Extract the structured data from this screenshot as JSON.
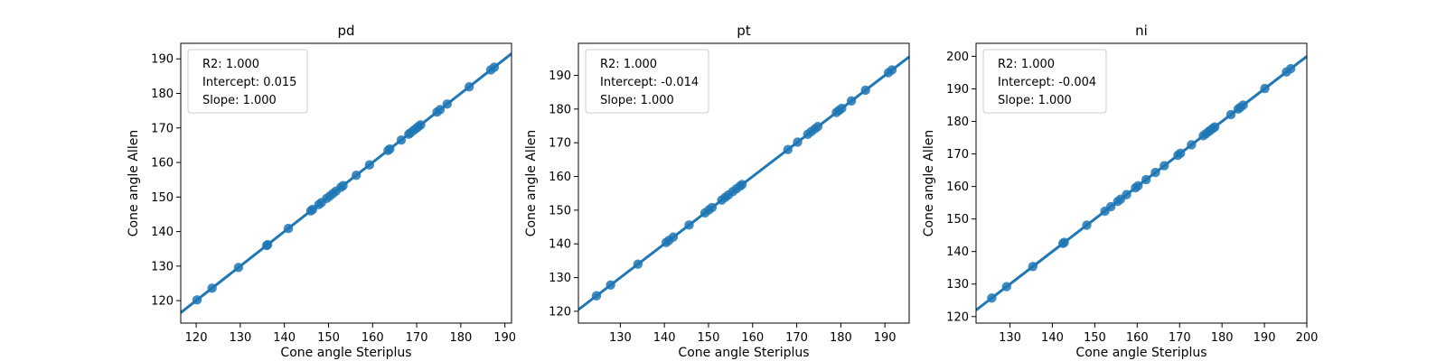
{
  "chart_data": [
    {
      "type": "scatter",
      "title": "pd",
      "xlabel": "Cone angle Steriplus",
      "ylabel": "Cone angle Allen",
      "xlim": [
        116.5,
        191.5
      ],
      "ylim": [
        113.5,
        194.5
      ],
      "xticks": [
        120,
        130,
        140,
        150,
        160,
        170,
        180,
        190
      ],
      "yticks": [
        120,
        130,
        140,
        150,
        160,
        170,
        180,
        190
      ],
      "grid": false,
      "legend_placement": "top-left",
      "annotations": [
        "R2: 1.000",
        "Intercept: 0.015",
        "Slope: 1.000"
      ],
      "fit": {
        "slope": 1.0,
        "intercept": 0.015
      },
      "x": [
        120.2,
        123.6,
        129.6,
        136.0,
        136.2,
        140.9,
        146.0,
        146.4,
        147.8,
        148.4,
        149.6,
        150.3,
        151.0,
        151.7,
        152.8,
        153.3,
        156.3,
        159.3,
        163.5,
        163.9,
        166.5,
        168.2,
        168.6,
        169.3,
        169.9,
        170.4,
        170.9,
        174.6,
        175.3,
        176.9,
        181.9,
        186.8,
        187.6
      ],
      "y": [
        120.2,
        123.6,
        129.6,
        136.0,
        136.2,
        140.9,
        146.0,
        146.4,
        147.8,
        148.4,
        149.6,
        150.3,
        151.0,
        151.7,
        152.8,
        153.3,
        156.3,
        159.3,
        163.5,
        163.9,
        166.5,
        168.2,
        168.6,
        169.3,
        169.9,
        170.4,
        170.9,
        174.6,
        175.3,
        176.9,
        181.9,
        186.8,
        187.6
      ],
      "color": "#1f77b4"
    },
    {
      "type": "scatter",
      "title": "pt",
      "xlabel": "Cone angle Steriplus",
      "ylabel": "Cone angle Allen",
      "xlim": [
        120.5,
        195.5
      ],
      "ylim": [
        116.5,
        199.5
      ],
      "xticks": [
        130,
        140,
        150,
        160,
        170,
        180,
        190
      ],
      "yticks": [
        120,
        130,
        140,
        150,
        160,
        170,
        180,
        190
      ],
      "grid": false,
      "legend_placement": "top-left",
      "annotations": [
        "R2: 1.000",
        "Intercept: -0.014",
        "Slope: 1.000"
      ],
      "fit": {
        "slope": 1.0,
        "intercept": -0.014
      },
      "x": [
        124.6,
        127.8,
        134.0,
        140.4,
        141.0,
        142.0,
        145.6,
        149.2,
        150.1,
        150.8,
        153.0,
        153.8,
        154.5,
        155.5,
        156.3,
        157.1,
        157.6,
        168.0,
        170.2,
        172.5,
        173.3,
        174.1,
        174.8,
        179.0,
        179.6,
        180.2,
        182.4,
        185.6,
        190.8,
        191.6
      ],
      "y": [
        124.6,
        127.8,
        134.0,
        140.4,
        141.0,
        142.0,
        145.6,
        149.2,
        150.1,
        150.8,
        153.0,
        153.8,
        154.5,
        155.5,
        156.3,
        157.1,
        157.6,
        168.0,
        170.2,
        172.5,
        173.3,
        174.1,
        174.8,
        179.0,
        179.6,
        180.2,
        182.4,
        185.6,
        190.8,
        191.6
      ],
      "color": "#1f77b4"
    },
    {
      "type": "scatter",
      "title": "ni",
      "xlabel": "Cone angle Steriplus",
      "ylabel": "Cone angle Allen",
      "xlim": [
        122,
        200
      ],
      "ylim": [
        118,
        204
      ],
      "xticks": [
        130,
        140,
        150,
        160,
        170,
        180,
        190,
        200
      ],
      "yticks": [
        120,
        130,
        140,
        150,
        160,
        170,
        180,
        190,
        200
      ],
      "grid": false,
      "legend_placement": "top-left",
      "annotations": [
        "R2: 1.000",
        "Intercept: -0.004",
        "Slope: 1.000"
      ],
      "fit": {
        "slope": 1.0,
        "intercept": -0.004
      },
      "x": [
        125.7,
        129.2,
        135.4,
        142.5,
        142.8,
        148.1,
        152.4,
        153.8,
        155.4,
        156.1,
        157.5,
        159.6,
        160.2,
        162.1,
        164.3,
        166.4,
        169.6,
        170.2,
        172.8,
        175.6,
        176.2,
        176.9,
        177.3,
        177.9,
        178.3,
        182.1,
        183.8,
        184.3,
        185.0,
        190.1,
        195.2,
        196.2
      ],
      "y": [
        125.7,
        129.2,
        135.4,
        142.5,
        142.8,
        148.1,
        152.4,
        153.8,
        155.4,
        156.1,
        157.5,
        159.6,
        160.2,
        162.1,
        164.3,
        166.4,
        169.6,
        170.2,
        172.8,
        175.6,
        176.2,
        176.9,
        177.3,
        177.9,
        178.3,
        182.1,
        183.8,
        184.3,
        185.0,
        190.1,
        195.2,
        196.2
      ],
      "color": "#1f77b4"
    }
  ]
}
